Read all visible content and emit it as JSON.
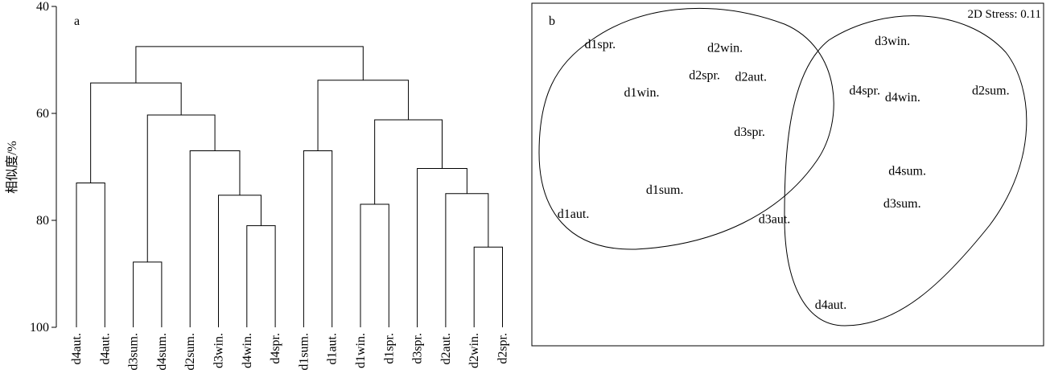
{
  "chart_data": [
    {
      "type": "dendrogram",
      "panel_label": "a",
      "ylabel": "相似度/%",
      "ylim": [
        40,
        100
      ],
      "yticks": [
        "40",
        "60",
        "80",
        "100"
      ],
      "leaves": [
        "d4aut.",
        "d4aut.",
        "d3sum.",
        "d4sum.",
        "d2sum.",
        "d3win.",
        "d4win.",
        "d4spr.",
        "d1sum.",
        "d1aut.",
        "d1win.",
        "d1spr.",
        "d3spr.",
        "d2aut.",
        "d2win.",
        "d2spr."
      ],
      "merges": [
        {
          "a": "L0",
          "b": "L1",
          "h": 73
        },
        {
          "a": "L2",
          "b": "L3",
          "h": 87.8
        },
        {
          "a": "L6",
          "b": "L7",
          "h": 81
        },
        {
          "a": "L5",
          "b": "M2",
          "h": 75.3
        },
        {
          "a": "L4",
          "b": "M3",
          "h": 67
        },
        {
          "a": "M1",
          "b": "M4",
          "h": 60.3
        },
        {
          "a": "M0",
          "b": "M5",
          "h": 54.3
        },
        {
          "a": "L8",
          "b": "L9",
          "h": 67
        },
        {
          "a": "L10",
          "b": "L11",
          "h": 77
        },
        {
          "a": "L14",
          "b": "L15",
          "h": 85
        },
        {
          "a": "L13",
          "b": "M9",
          "h": 75
        },
        {
          "a": "L12",
          "b": "M10",
          "h": 70.3
        },
        {
          "a": "M8",
          "b": "M11",
          "h": 61.2
        },
        {
          "a": "M7",
          "b": "M12",
          "h": 53.8
        },
        {
          "a": "M6",
          "b": "M13",
          "h": 47.5
        }
      ]
    },
    {
      "type": "scatter",
      "panel_label": "b",
      "stress_label": "2D Stress: 0.11",
      "points": [
        {
          "label": "d1spr.",
          "x": 0.103,
          "y": 0.88
        },
        {
          "label": "d2win.",
          "x": 0.343,
          "y": 0.87
        },
        {
          "label": "d3win.",
          "x": 0.67,
          "y": 0.89
        },
        {
          "label": "d2spr.",
          "x": 0.307,
          "y": 0.79
        },
        {
          "label": "d2aut.",
          "x": 0.397,
          "y": 0.785
        },
        {
          "label": "d1win.",
          "x": 0.18,
          "y": 0.74
        },
        {
          "label": "d4spr.",
          "x": 0.62,
          "y": 0.745
        },
        {
          "label": "d4win.",
          "x": 0.69,
          "y": 0.725
        },
        {
          "label": "d2sum.",
          "x": 0.86,
          "y": 0.745
        },
        {
          "label": "d3spr.",
          "x": 0.395,
          "y": 0.625
        },
        {
          "label": "d4sum.",
          "x": 0.697,
          "y": 0.51
        },
        {
          "label": "d1sum.",
          "x": 0.223,
          "y": 0.455
        },
        {
          "label": "d3sum.",
          "x": 0.687,
          "y": 0.415
        },
        {
          "label": "d1aut.",
          "x": 0.05,
          "y": 0.385
        },
        {
          "label": "d3aut.",
          "x": 0.443,
          "y": 0.37
        },
        {
          "label": "d4aut.",
          "x": 0.553,
          "y": 0.12
        }
      ]
    }
  ]
}
